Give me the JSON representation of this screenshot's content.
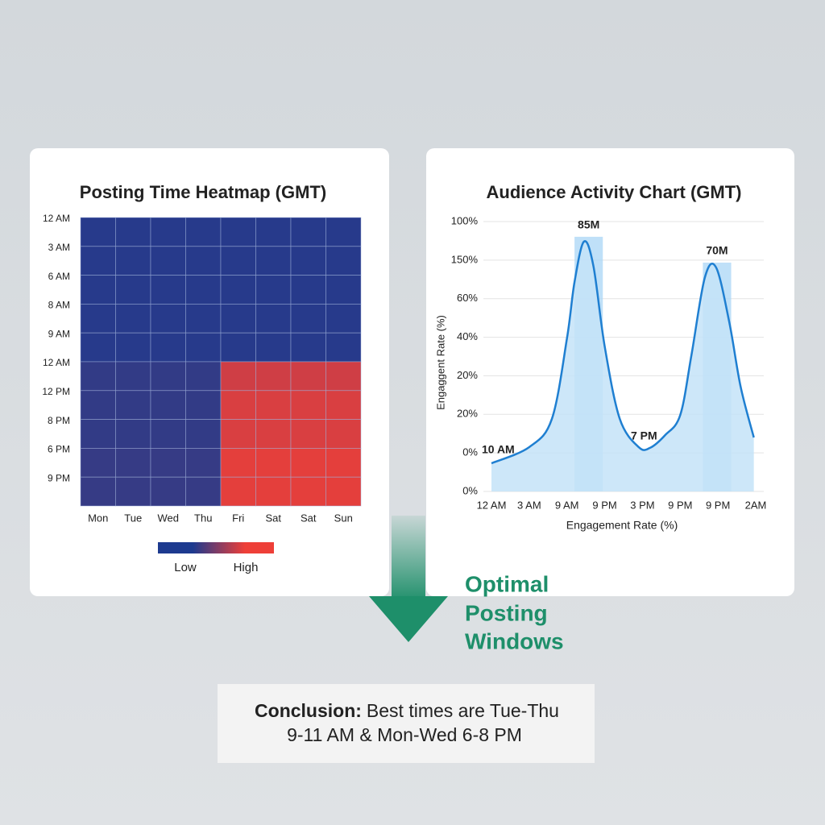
{
  "chart_data": [
    {
      "type": "heatmap",
      "title": "Posting Time Heatmap (GMT)",
      "rows": [
        "12 AM",
        "3 AM",
        "6 AM",
        "8 AM",
        "9 AM",
        "12 AM",
        "12 PM",
        "8 PM",
        "6 PM",
        "9 PM"
      ],
      "columns": [
        "Mon",
        "Tue",
        "Wed",
        "Thu",
        "Fri",
        "Sat",
        "Sat",
        "Sun"
      ],
      "values": [
        [
          0.05,
          0.05,
          0.05,
          0.05,
          0.05,
          0.05,
          0.05,
          0.05
        ],
        [
          0.05,
          0.05,
          0.05,
          0.05,
          0.05,
          0.05,
          0.05,
          0.05
        ],
        [
          0.05,
          0.05,
          0.05,
          0.05,
          0.05,
          0.05,
          0.05,
          0.05
        ],
        [
          0.05,
          0.05,
          0.05,
          0.05,
          0.05,
          0.05,
          0.05,
          0.05
        ],
        [
          0.05,
          0.05,
          0.05,
          0.05,
          0.05,
          0.05,
          0.05,
          0.05
        ],
        [
          0.1,
          0.1,
          0.1,
          0.1,
          0.85,
          0.85,
          0.85,
          0.85
        ],
        [
          0.1,
          0.1,
          0.1,
          0.1,
          0.9,
          0.9,
          0.9,
          0.9
        ],
        [
          0.1,
          0.1,
          0.1,
          0.1,
          0.9,
          0.9,
          0.9,
          0.9
        ],
        [
          0.12,
          0.12,
          0.12,
          0.12,
          0.95,
          0.95,
          0.95,
          0.95
        ],
        [
          0.12,
          0.12,
          0.12,
          0.12,
          0.95,
          0.95,
          0.95,
          0.95
        ]
      ],
      "zlim": [
        0,
        1
      ],
      "colorscale": {
        "low": "#1d3a8f",
        "high": "#ee3f38"
      },
      "legend": [
        "Low",
        "High"
      ]
    },
    {
      "type": "line",
      "title": "Audience Activity Chart (GMT)",
      "x_label": "Engagement Rate (%)",
      "y_label": "Engaggent Rate (%)",
      "xlim": [
        0,
        7
      ],
      "xticks": [
        {
          "value": 0,
          "label": "12 AM"
        },
        {
          "value": 1,
          "label": "3 AM"
        },
        {
          "value": 2,
          "label": "9 AM"
        },
        {
          "value": 3,
          "label": "9 PM"
        },
        {
          "value": 4,
          "label": "3 PM"
        },
        {
          "value": 5,
          "label": "9 PM"
        },
        {
          "value": 6,
          "label": "9 PM"
        },
        {
          "value": 7,
          "label": "2AM"
        }
      ],
      "ylim": [
        0,
        7
      ],
      "yticks": [
        {
          "value": 0,
          "label": "0%"
        },
        {
          "value": 1,
          "label": "0%"
        },
        {
          "value": 2,
          "label": "20%"
        },
        {
          "value": 3,
          "label": "20%"
        },
        {
          "value": 4,
          "label": "40%"
        },
        {
          "value": 5,
          "label": "60%"
        },
        {
          "value": 6,
          "label": "150%"
        },
        {
          "value": 7,
          "label": "100%"
        }
      ],
      "grid": true,
      "x": [
        0,
        1,
        1.6,
        2,
        2.2,
        2.45,
        2.7,
        3,
        3.4,
        3.9,
        4.2,
        4.6,
        5,
        5.3,
        5.65,
        5.95,
        6.3,
        6.6,
        6.95
      ],
      "series": [
        {
          "color": "#1f7fd1",
          "fill": "#c4e3f8",
          "values": [
            0.73,
            1.15,
            1.88,
            3.97,
            5.43,
            6.48,
            5.85,
            3.76,
            1.88,
            1.15,
            1.13,
            1.46,
            1.98,
            3.55,
            5.54,
            5.81,
            4.39,
            2.72,
            1.4
          ]
        }
      ],
      "highlights": [
        {
          "label": "85M",
          "x": [
            2.2,
            2.95
          ]
        },
        {
          "label": "70M",
          "x": [
            5.6,
            6.35
          ]
        }
      ],
      "annotations": [
        "10 AM",
        "7 PM"
      ]
    }
  ],
  "callout": [
    "Optimal",
    "Posting",
    "Windows"
  ],
  "conclusion": {
    "label": "Conclusion:",
    "lines": [
      "Best times are Tue-Thu",
      "9-11 AM & Mon-Wed 6-8 PM"
    ]
  }
}
